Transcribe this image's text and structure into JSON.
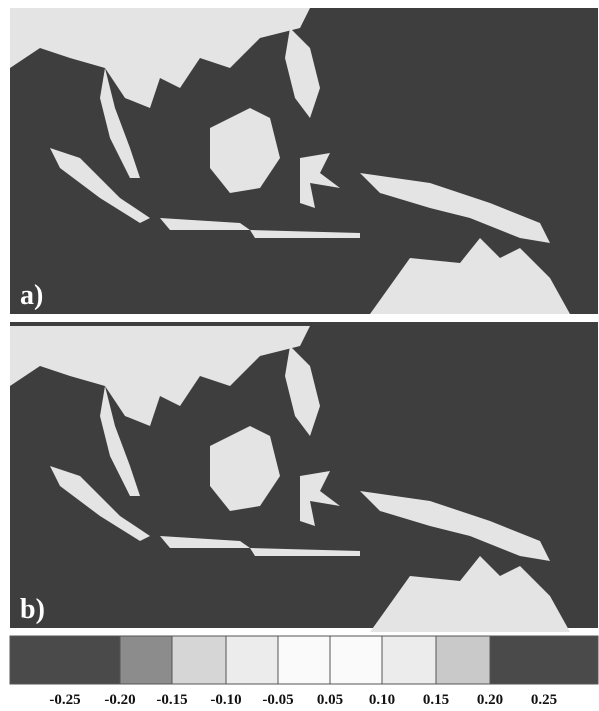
{
  "panels": [
    {
      "label": "a)"
    },
    {
      "label": "b)"
    }
  ],
  "colorbar": {
    "colors": [
      "#4a4a4a",
      "#8c8c8c",
      "#d6d6d6",
      "#ececec",
      "#fafafa",
      "#fafafa",
      "#ececec",
      "#c9c9c9",
      "#4a4a4a"
    ],
    "labels": [
      "-0.25",
      "-0.20",
      "-0.15",
      "-0.10",
      "-0.05",
      "0.05",
      "0.10",
      "0.15",
      "0.20",
      "0.25"
    ]
  }
}
